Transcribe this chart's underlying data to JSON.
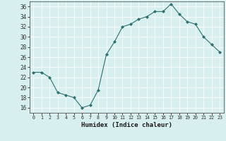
{
  "x": [
    0,
    1,
    2,
    3,
    4,
    5,
    6,
    7,
    8,
    9,
    10,
    11,
    12,
    13,
    14,
    15,
    16,
    17,
    18,
    19,
    20,
    21,
    22,
    23
  ],
  "y": [
    23,
    23,
    22,
    19,
    18.5,
    18,
    16,
    16.5,
    19.5,
    26.5,
    29,
    32,
    32.5,
    33.5,
    34,
    35,
    35,
    36.5,
    34.5,
    33,
    32.5,
    30,
    28.5,
    27
  ],
  "line_color": "#2d7070",
  "marker_color": "#2d7070",
  "bg_color": "#d8efef",
  "grid_color": "#ffffff",
  "xlabel": "Humidex (Indice chaleur)",
  "ylim": [
    15,
    37
  ],
  "yticks": [
    16,
    18,
    20,
    22,
    24,
    26,
    28,
    30,
    32,
    34,
    36
  ],
  "xticks": [
    0,
    1,
    2,
    3,
    4,
    5,
    6,
    7,
    8,
    9,
    10,
    11,
    12,
    13,
    14,
    15,
    16,
    17,
    18,
    19,
    20,
    21,
    22,
    23
  ]
}
